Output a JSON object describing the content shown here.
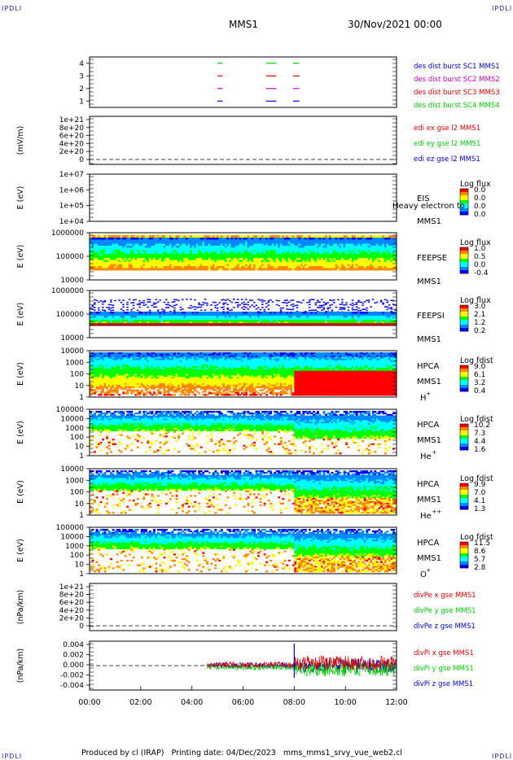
{
  "corners": {
    "tl": "IPDLI",
    "tr": "IPDLI",
    "bl": "IPDLI",
    "br": "IPDLI"
  },
  "header": {
    "title": "MMS1",
    "datetime": "30/Nov/2021 00:00"
  },
  "footer": {
    "text": "Produced by cl (IRAP)   Printing date: 04/Dec/2023   mms_mms1_srvy_vue_web2.cl"
  },
  "colors": {
    "blue": "#0000cc",
    "magenta": "#cc00cc",
    "red": "#dd0000",
    "green": "#00cc00",
    "spectrum": [
      "#0000ff",
      "#0088ff",
      "#00ffff",
      "#00ff00",
      "#ffff00",
      "#ff8800",
      "#ff0000"
    ]
  },
  "chart_data": {
    "type": "multi-panel time series",
    "x_ticks": [
      "00:00",
      "02:00",
      "04:00",
      "06:00",
      "08:00",
      "10:00",
      "12:00"
    ],
    "xlim_hours": [
      0,
      12
    ],
    "panels": [
      {
        "id": "burst",
        "type": "segments",
        "yticks": [
          "4",
          "3",
          "2",
          "1"
        ],
        "ylim": [
          0.5,
          4.5
        ],
        "legend": [
          "des dist burst SC1 MMS1",
          "des dist burst SC2 MMS2",
          "des dist burst SC3 MMS3",
          "des dist burst SC4 MMS4"
        ],
        "series": [
          {
            "level": 4,
            "color": "green",
            "intervals": [
              [
                5.0,
                5.2
              ],
              [
                6.9,
                7.3
              ],
              [
                7.95,
                8.2
              ]
            ]
          },
          {
            "level": 3,
            "color": "red",
            "intervals": [
              [
                5.0,
                5.2
              ],
              [
                6.9,
                7.3
              ],
              [
                7.95,
                8.2
              ]
            ]
          },
          {
            "level": 2,
            "color": "magenta",
            "intervals": [
              [
                5.0,
                5.2
              ],
              [
                6.9,
                7.3
              ],
              [
                7.95,
                8.2
              ]
            ]
          },
          {
            "level": 1,
            "color": "blue",
            "intervals": [
              [
                5.0,
                5.2
              ],
              [
                6.9,
                7.3
              ],
              [
                7.95,
                8.2
              ]
            ]
          }
        ]
      },
      {
        "id": "edi",
        "type": "line",
        "ylabel": "(mV/m)",
        "yticks": [
          "1e+21",
          "8e+20",
          "6e+20",
          "4e+20",
          "2e+20",
          "0"
        ],
        "legend": [
          "edi ex gse l2 MMS1",
          "edi ey gse l2 MMS1",
          "edi ez gse l2 MMS1"
        ],
        "dashed_zero": true
      },
      {
        "id": "eis",
        "type": "spectrogram",
        "ylabel": "E (eV)",
        "yticks": [
          "1e+07",
          "1e+06",
          "1e+05",
          "1e+04"
        ],
        "instrument": [
          "EIS",
          "MMS1"
        ],
        "overlay_text": "Heavy electron to",
        "cbar_title": "Log flux",
        "cbar_ticks": [
          "0.0",
          "0.0",
          "0.0",
          "0.0"
        ]
      },
      {
        "id": "feepse",
        "type": "spectrogram",
        "ylabel": "E (eV)",
        "yticks": [
          "1000000",
          "100000",
          "10000"
        ],
        "instrument": [
          "FEEPSE",
          "MMS1"
        ],
        "cbar_title": "Log flux",
        "cbar_ticks": [
          "1.0",
          "0.5",
          "0.0",
          "-0.4"
        ]
      },
      {
        "id": "feepsi",
        "type": "spectrogram",
        "ylabel": "E (eV)",
        "yticks": [
          "1000000",
          "100000",
          "10000"
        ],
        "instrument": [
          "FEEPSI",
          "MMS1"
        ],
        "cbar_title": "Log flux",
        "cbar_ticks": [
          "3.0",
          "2.1",
          "1.2",
          "0.2"
        ]
      },
      {
        "id": "hpca_h",
        "type": "spectrogram",
        "ylabel": "E (eV)",
        "yticks": [
          "10000",
          "1000",
          "100",
          "10",
          "1"
        ],
        "instrument": [
          "HPCA",
          "MMS1"
        ],
        "species": "H",
        "charge": "+",
        "cbar_title": "Log fdist",
        "cbar_ticks": [
          "9.0",
          "6.1",
          "3.2",
          "0.4"
        ]
      },
      {
        "id": "hpca_he1",
        "type": "spectrogram",
        "ylabel": "E (eV)",
        "yticks": [
          "100000",
          "10000",
          "1000",
          "100",
          "10",
          "1"
        ],
        "instrument": [
          "HPCA",
          "MMS1"
        ],
        "species": "He",
        "charge": "+",
        "cbar_title": "Log fdist",
        "cbar_ticks": [
          "10.2",
          "7.3",
          "4.4",
          "1.6"
        ]
      },
      {
        "id": "hpca_he2",
        "type": "spectrogram",
        "ylabel": "E (eV)",
        "yticks": [
          "10000",
          "1000",
          "100",
          "10",
          "1"
        ],
        "instrument": [
          "HPCA",
          "MMS1"
        ],
        "species": "He",
        "charge": "++",
        "cbar_title": "Log fdist",
        "cbar_ticks": [
          "9.9",
          "7.0",
          "4.1",
          "1.3"
        ]
      },
      {
        "id": "hpca_o",
        "type": "spectrogram",
        "ylabel": "E (eV)",
        "yticks": [
          "100000",
          "10000",
          "1000",
          "100",
          "10",
          "1"
        ],
        "instrument": [
          "HPCA",
          "MMS1"
        ],
        "species": "O",
        "charge": "+",
        "cbar_title": "Log fdist",
        "cbar_ticks": [
          "11.5",
          "8.6",
          "5.7",
          "2.8"
        ]
      },
      {
        "id": "divpe",
        "type": "line",
        "ylabel": "(nPa/km)",
        "yticks": [
          "1e+21",
          "8e+20",
          "6e+20",
          "4e+20",
          "2e+20",
          "0"
        ],
        "legend": [
          "divPe x gse MMS1",
          "divPe y gse MMS1",
          "divPe z gse MMS1"
        ],
        "dashed_zero": true
      },
      {
        "id": "divpi",
        "type": "line",
        "ylabel": "(nPa/km)",
        "yticks": [
          "0.004",
          "0.002",
          "0.000",
          "-0.002",
          "-0.004"
        ],
        "ylim": [
          -0.005,
          0.005
        ],
        "legend": [
          "divPi x gse MMS1",
          "divPi y gse MMS1",
          "divPi z gse MMS1"
        ],
        "dashed_zero": true,
        "data_start_hour": 4.6,
        "data_jump_hour": 8.0,
        "amplitude_before": 0.0006,
        "amplitude_after": 0.0015
      }
    ]
  }
}
